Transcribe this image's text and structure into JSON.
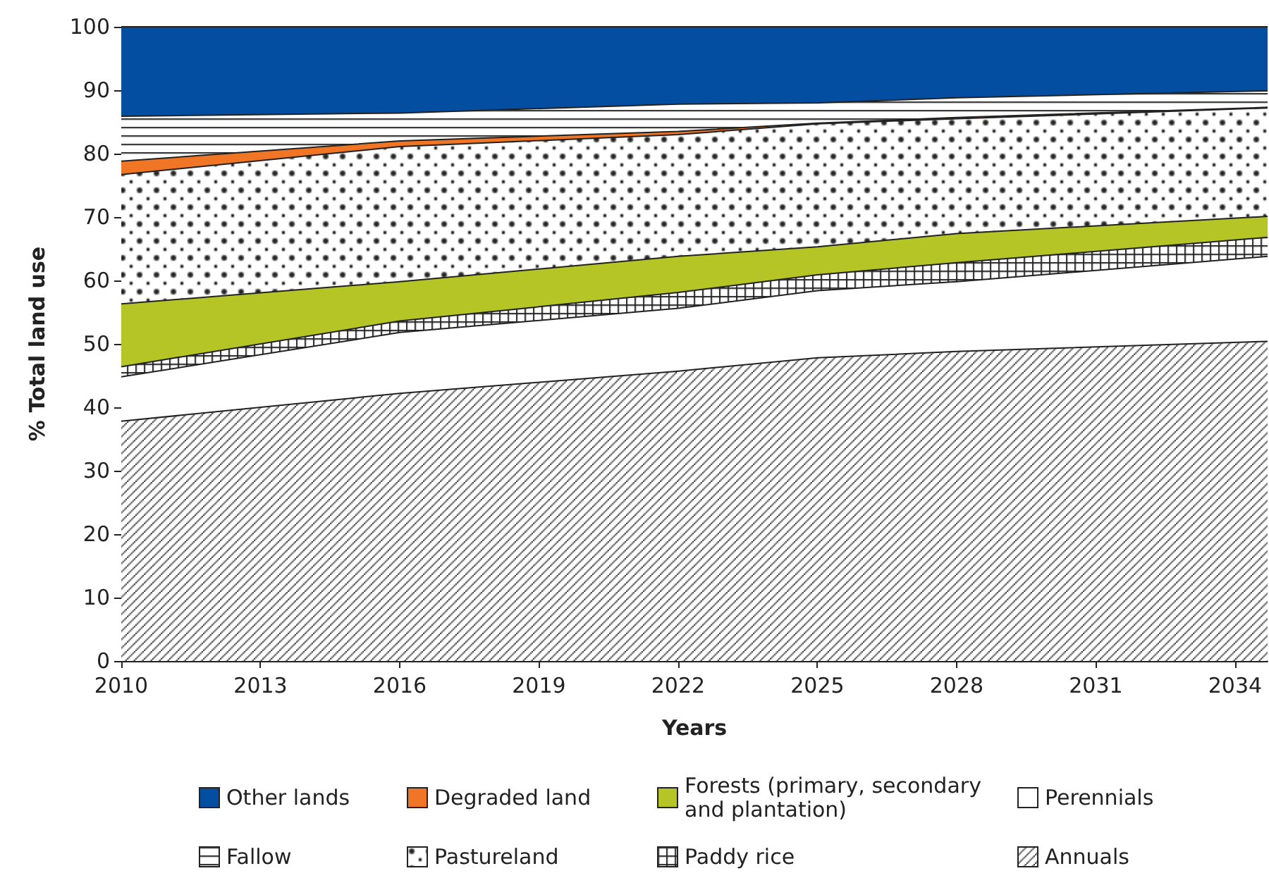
{
  "chart_data": {
    "type": "area",
    "stacked": true,
    "xlabel": "Years",
    "ylabel": "% Total land use",
    "x": [
      2010,
      2016,
      2022,
      2025,
      2028,
      2034.7
    ],
    "xlim": [
      2010,
      2034.7
    ],
    "xticks": [
      2010,
      2013,
      2016,
      2019,
      2022,
      2025,
      2028,
      2031,
      2034
    ],
    "ylim": [
      0,
      100
    ],
    "yticks": [
      0,
      10,
      20,
      30,
      40,
      50,
      60,
      70,
      80,
      90,
      100
    ],
    "legend": "bottom",
    "series": [
      {
        "name": "Annuals",
        "color": "#ffffff",
        "values": [
          37.8,
          42.2,
          45.7,
          47.8,
          48.8,
          50.4
        ]
      },
      {
        "name": "Perennials",
        "color": "#ffffff",
        "values": [
          7.0,
          9.6,
          9.9,
          10.6,
          11.0,
          13.4
        ]
      },
      {
        "name": "Paddy rice",
        "color": "#ffffff",
        "values": [
          1.6,
          1.8,
          2.5,
          2.5,
          3.0,
          3.0
        ]
      },
      {
        "name": "Forests (primary, secondary and plantation)",
        "color": "#b5c526",
        "values": [
          9.9,
          6.2,
          5.7,
          4.4,
          4.6,
          3.3
        ]
      },
      {
        "name": "Pastureland",
        "color": "#ffffff",
        "values": [
          20.4,
          21.3,
          19.2,
          19.4,
          18.1,
          17.1
        ]
      },
      {
        "name": "Degraded land",
        "color": "#f07524",
        "values": [
          2.1,
          0.9,
          0.5,
          0.1,
          0.2,
          0.1
        ]
      },
      {
        "name": "Fallow",
        "color": "#ffffff",
        "values": [
          7.1,
          4.4,
          4.3,
          3.2,
          3.1,
          2.6
        ]
      },
      {
        "name": "Other lands",
        "color": "#044ea1",
        "values": [
          14.1,
          13.6,
          12.2,
          12.0,
          11.2,
          10.1
        ]
      }
    ]
  }
}
